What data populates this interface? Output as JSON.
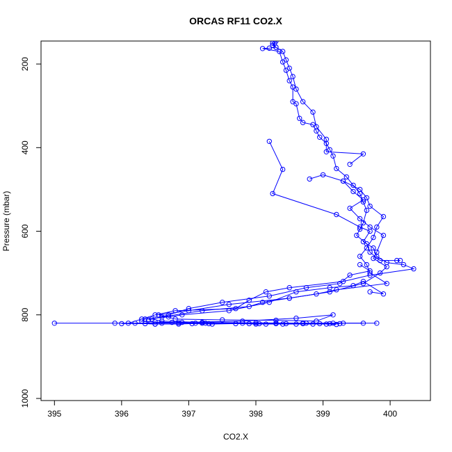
{
  "chart_data": {
    "type": "line",
    "title": "ORCAS RF11 CO2.X",
    "xlabel": "CO2.X",
    "ylabel": "Pressure (mbar)",
    "xlim": [
      394.8,
      400.6
    ],
    "ylim": [
      1005,
      145
    ],
    "y_reversed": true,
    "grid": false,
    "xticks": [
      395,
      396,
      397,
      398,
      399,
      400
    ],
    "yticks": [
      200,
      400,
      600,
      800,
      1000
    ],
    "color": "#0000ff",
    "marker": "open-circle",
    "series": [
      {
        "points": [
          [
            398.3,
            145
          ],
          [
            398.28,
            150
          ],
          [
            398.25,
            155
          ],
          [
            398.3,
            160
          ],
          [
            398.2,
            162
          ],
          [
            398.1,
            163
          ],
          [
            398.35,
            170
          ],
          [
            398.4,
            195
          ],
          [
            398.45,
            215
          ],
          [
            398.5,
            240
          ],
          [
            398.55,
            255
          ],
          [
            398.55,
            290
          ],
          [
            398.6,
            295
          ],
          [
            398.65,
            330
          ],
          [
            398.7,
            340
          ],
          [
            398.85,
            345
          ],
          [
            398.9,
            360
          ],
          [
            398.95,
            375
          ],
          [
            399.05,
            390
          ],
          [
            399.1,
            405
          ],
          [
            399.15,
            420
          ],
          [
            399.2,
            450
          ],
          [
            399.35,
            470
          ],
          [
            399.45,
            490
          ],
          [
            399.55,
            510
          ],
          [
            399.6,
            530
          ],
          [
            399.65,
            550
          ],
          [
            399.6,
            580
          ],
          [
            399.55,
            595
          ],
          [
            399.5,
            610
          ],
          [
            399.65,
            630
          ],
          [
            399.7,
            650
          ],
          [
            399.85,
            670
          ],
          [
            400.1,
            670
          ],
          [
            400.15,
            670
          ]
        ]
      },
      {
        "points": [
          [
            398.2,
            385
          ],
          [
            398.4,
            452
          ],
          [
            398.25,
            510
          ],
          [
            399.2,
            560
          ],
          [
            399.55,
            590
          ],
          [
            399.7,
            600
          ],
          [
            399.6,
            625
          ],
          [
            399.75,
            640
          ],
          [
            399.8,
            660
          ],
          [
            399.95,
            675
          ],
          [
            400.2,
            680
          ],
          [
            400.35,
            690
          ],
          [
            399.7,
            705
          ],
          [
            399.3,
            720
          ],
          [
            398.5,
            735
          ],
          [
            398.15,
            745
          ],
          [
            397.9,
            765
          ],
          [
            397.7,
            785
          ],
          [
            396.8,
            790
          ],
          [
            396.5,
            800
          ],
          [
            396.3,
            810
          ],
          [
            396.1,
            820
          ]
        ]
      },
      {
        "points": [
          [
            399.4,
            440
          ],
          [
            399.6,
            415
          ],
          [
            399.05,
            410
          ],
          [
            399.05,
            380
          ],
          [
            398.9,
            350
          ],
          [
            398.85,
            315
          ],
          [
            398.7,
            290
          ],
          [
            398.6,
            260
          ],
          [
            398.55,
            230
          ],
          [
            398.5,
            210
          ],
          [
            398.45,
            190
          ],
          [
            398.4,
            170
          ],
          [
            398.3,
            160
          ],
          [
            398.25,
            150
          ]
        ]
      },
      {
        "points": [
          [
            398.8,
            475
          ],
          [
            399.0,
            465
          ],
          [
            399.3,
            480
          ],
          [
            399.55,
            500
          ],
          [
            399.65,
            520
          ],
          [
            399.7,
            540
          ],
          [
            399.9,
            565
          ],
          [
            399.8,
            590
          ],
          [
            399.75,
            615
          ],
          [
            399.65,
            640
          ],
          [
            399.55,
            660
          ],
          [
            399.65,
            680
          ],
          [
            399.7,
            700
          ],
          [
            399.95,
            725
          ],
          [
            399.2,
            740
          ],
          [
            398.9,
            750
          ],
          [
            398.5,
            760
          ],
          [
            398.1,
            770
          ],
          [
            397.9,
            780
          ],
          [
            397.2,
            790
          ],
          [
            396.6,
            805
          ],
          [
            396.4,
            812
          ]
        ]
      },
      {
        "points": [
          [
            399.3,
            480
          ],
          [
            399.45,
            505
          ],
          [
            399.6,
            525
          ],
          [
            399.4,
            545
          ],
          [
            399.55,
            570
          ],
          [
            399.7,
            590
          ],
          [
            399.9,
            610
          ],
          [
            399.8,
            650
          ],
          [
            399.75,
            665
          ],
          [
            399.95,
            685
          ],
          [
            399.85,
            700
          ],
          [
            399.6,
            725
          ],
          [
            399.1,
            745
          ],
          [
            398.5,
            760
          ],
          [
            397.6,
            775
          ],
          [
            397.0,
            790
          ],
          [
            396.55,
            800
          ],
          [
            396.8,
            810
          ],
          [
            397.5,
            812
          ],
          [
            398.3,
            813
          ],
          [
            398.9,
            815
          ],
          [
            399.15,
            800
          ],
          [
            398.6,
            808
          ],
          [
            397.8,
            815
          ],
          [
            396.9,
            818
          ],
          [
            396.2,
            820
          ],
          [
            396.5,
            822
          ]
        ]
      },
      {
        "points": [
          [
            399.55,
            680
          ],
          [
            399.7,
            695
          ],
          [
            399.4,
            705
          ],
          [
            399.25,
            725
          ],
          [
            398.75,
            735
          ],
          [
            398.2,
            755
          ],
          [
            397.5,
            770
          ],
          [
            397.0,
            785
          ],
          [
            396.7,
            800
          ],
          [
            396.45,
            810
          ],
          [
            396.6,
            815
          ],
          [
            397.2,
            818
          ],
          [
            398.0,
            819
          ],
          [
            398.7,
            820
          ],
          [
            399.3,
            820
          ],
          [
            399.8,
            820
          ]
        ]
      },
      {
        "points": [
          [
            399.7,
            745
          ],
          [
            399.9,
            750
          ],
          [
            399.6,
            720
          ],
          [
            399.45,
            730
          ],
          [
            399.1,
            735
          ],
          [
            398.6,
            745
          ],
          [
            398.2,
            770
          ],
          [
            397.6,
            790
          ],
          [
            396.9,
            800
          ],
          [
            396.7,
            805
          ],
          [
            396.35,
            810
          ],
          [
            396.3,
            815
          ],
          [
            396.5,
            817
          ],
          [
            396.75,
            818
          ],
          [
            396.85,
            819
          ],
          [
            397.1,
            820
          ],
          [
            397.25,
            820
          ],
          [
            397.3,
            821
          ],
          [
            397.9,
            821
          ],
          [
            398.05,
            821
          ],
          [
            398.3,
            821
          ],
          [
            398.45,
            821
          ],
          [
            398.7,
            821
          ],
          [
            398.95,
            821
          ],
          [
            399.1,
            821
          ],
          [
            399.25,
            821
          ]
        ]
      },
      {
        "points": [
          [
            395.0,
            820
          ],
          [
            395.9,
            820
          ],
          [
            396.6,
            820
          ],
          [
            397.2,
            820
          ],
          [
            397.8,
            820
          ],
          [
            398.3,
            820
          ],
          [
            398.75,
            820
          ],
          [
            399.15,
            820
          ],
          [
            399.6,
            820
          ]
        ]
      },
      {
        "points": [
          [
            396.0,
            821
          ],
          [
            396.35,
            821
          ],
          [
            396.5,
            822
          ],
          [
            396.85,
            822
          ],
          [
            397.05,
            821
          ],
          [
            397.35,
            822
          ],
          [
            397.7,
            821
          ],
          [
            398.0,
            822
          ],
          [
            398.15,
            822
          ],
          [
            398.4,
            822
          ],
          [
            398.6,
            822
          ],
          [
            398.85,
            822
          ],
          [
            399.05,
            822
          ],
          [
            399.2,
            823
          ]
        ]
      }
    ]
  }
}
